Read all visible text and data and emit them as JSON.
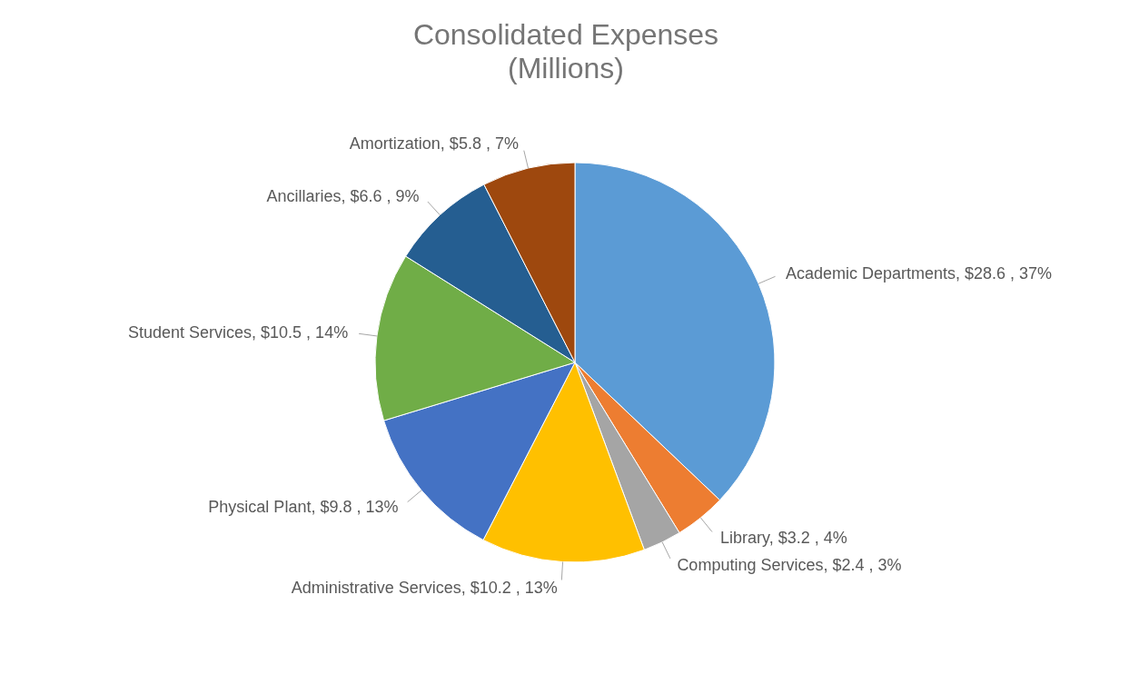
{
  "chart_data": {
    "type": "pie",
    "title": "Consolidated Expenses",
    "subtitle": "(Millions)",
    "categories": [
      "Academic Departments",
      "Library",
      "Computing Services",
      "Administrative Services",
      "Physical Plant",
      "Student Services",
      "Ancillaries",
      "Amortization"
    ],
    "values": [
      28.6,
      3.2,
      2.4,
      10.2,
      9.8,
      10.5,
      6.6,
      5.8
    ],
    "value_labels": [
      "$28.6 , 37%",
      "$3.2 , 4%",
      "$2.4 , 3%",
      "$10.2 , 13%",
      "$9.8 , 13%",
      "$10.5 , 14%",
      "$6.6 , 9%",
      "$5.8 , 7%"
    ],
    "colors": [
      "#5b9bd5",
      "#ed7d31",
      "#a5a5a5",
      "#ffc000",
      "#4472c4",
      "#70ad47",
      "#255e91",
      "#9e480e"
    ]
  }
}
